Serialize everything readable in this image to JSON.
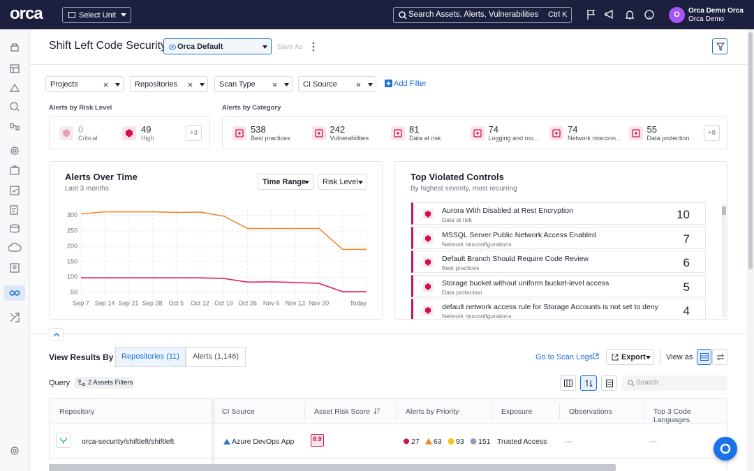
{
  "topbar": {
    "logo": "orca",
    "unit": "Select Unit",
    "search": "Search Assets, Alerts, Vulnerabilities",
    "shortcut": "Ctrl K",
    "avatar": "O",
    "user": "Orca Demo Orca",
    "org": "Orca Demo"
  },
  "header": {
    "title": "Shift Left Code Security",
    "view": "Orca Default",
    "save_as": "Save As"
  },
  "filters": {
    "items": [
      "Projects",
      "Repositories",
      "Scan Type",
      "CI Source"
    ],
    "add": "Add Filter"
  },
  "risk": {
    "label": "Alerts by Risk Level",
    "items": [
      {
        "count": 0,
        "label": "Critical"
      },
      {
        "count": 49,
        "label": "High"
      }
    ],
    "more": "+3"
  },
  "categories": {
    "label": "Alerts by Category",
    "items": [
      {
        "count": 538,
        "label": "Best practices"
      },
      {
        "count": 242,
        "label": "Vulnerabilities"
      },
      {
        "count": 81,
        "label": "Data at risk"
      },
      {
        "count": 74,
        "label": "Logging and mo..."
      },
      {
        "count": 74,
        "label": "Network misconn..."
      },
      {
        "count": 55,
        "label": "Data protection"
      }
    ],
    "more": "+8"
  },
  "alerts_card": {
    "controls": [
      "Time Range",
      "Risk Level"
    ]
  },
  "chart_data": {
    "type": "line",
    "title": "Alerts Over Time",
    "subtitle": "Last 3 months",
    "categories": [
      "Sep 7",
      "Sep 14",
      "Sep 21",
      "Sep 28",
      "Oct 5",
      "Oct 12",
      "Oct 19",
      "Oct 26",
      "Nov 6",
      "Nov 13",
      "Nov 20",
      null,
      "Today"
    ],
    "series": [
      {
        "color": "#f5862c",
        "values": [
          305,
          312,
          312,
          312,
          310,
          311,
          298,
          258,
          258,
          258,
          258,
          190,
          190
        ]
      },
      {
        "color": "#e0245e",
        "values": [
          98,
          98,
          98,
          98,
          98,
          98,
          96,
          84,
          85,
          83,
          80,
          53,
          53
        ]
      }
    ],
    "ylim": [
      35,
      320
    ],
    "yticks": [
      50,
      100,
      150,
      200,
      250,
      300
    ],
    "grid": true
  },
  "violations": {
    "title": "Top Violated Controls",
    "subtitle": "By highest severity, most recurring",
    "items": [
      {
        "name": "Aurora With Disabled at Rest Encryption",
        "category": "Data at risk",
        "count": 10
      },
      {
        "name": "MSSQL Server Public Network Access Enabled",
        "category": "Network misconfigurations",
        "count": 7
      },
      {
        "name": "Default Branch Should Require Code Review",
        "category": "Best practices",
        "count": 6
      },
      {
        "name": "Storage bucket without uniform bucket-level access",
        "category": "Data protection",
        "count": 5
      },
      {
        "name": "default network access rule for Storage Accounts is not set to deny",
        "category": "Network misconfigurations",
        "count": 4
      }
    ]
  },
  "results": {
    "label": "View Results By",
    "tabs": [
      "Repositories (11)",
      "Alerts (1,146)"
    ],
    "scan_logs": "Go to Scan Logs",
    "export": "Export",
    "view_as": "View as",
    "query": "Query",
    "query_filter": "2 Assets Filters",
    "search": "Search",
    "columns": [
      "Repository",
      "CI Source",
      "Asset Risk Score",
      "Alerts by Priority",
      "Exposure",
      "Observations",
      "Top 3 Code Languages"
    ],
    "rows": [
      {
        "repository": "orca-security/shiftleft/shiftleft",
        "ci_source": "Azure DevOps App",
        "risk_score": 8.9,
        "priority": [
          27,
          63,
          93,
          151
        ],
        "exposure": "Trusted Access",
        "observations": "---",
        "languages": "---"
      }
    ]
  }
}
